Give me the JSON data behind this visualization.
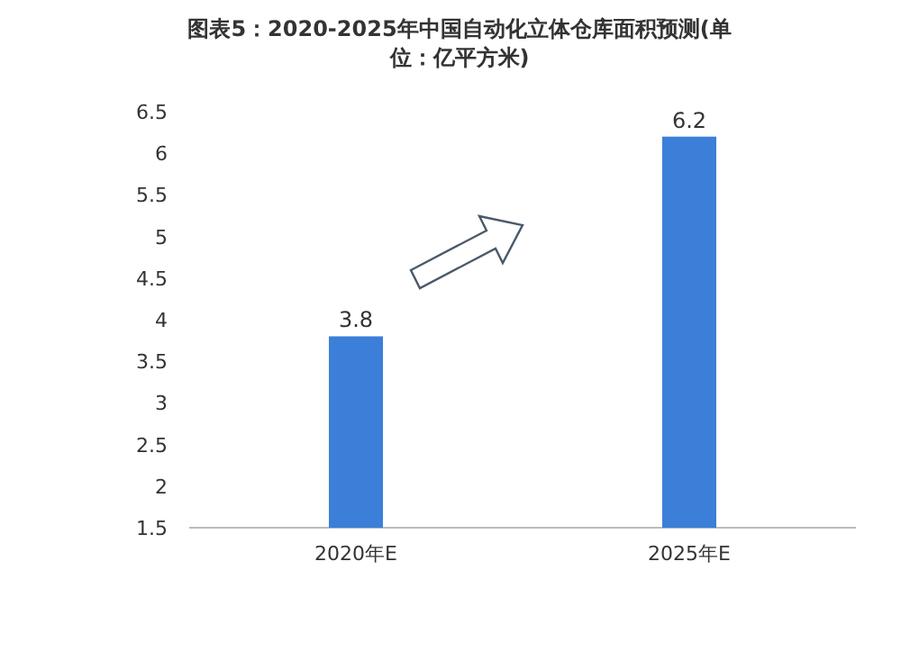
{
  "chart_data": {
    "type": "bar",
    "title": "图表5：2020-2025年中国自动化立体仓库面积预测(单位：亿平方米)",
    "categories": [
      "2020年E",
      "2025年E"
    ],
    "series": [
      {
        "color": "#3b7fd8",
        "values": [
          3.8,
          6.2
        ]
      }
    ],
    "ylim": [
      1.5,
      6.5
    ],
    "yticks": [
      1.5,
      2,
      2.5,
      3,
      3.5,
      4,
      4.5,
      5,
      5.5,
      6,
      6.5
    ],
    "data_labels": true
  }
}
